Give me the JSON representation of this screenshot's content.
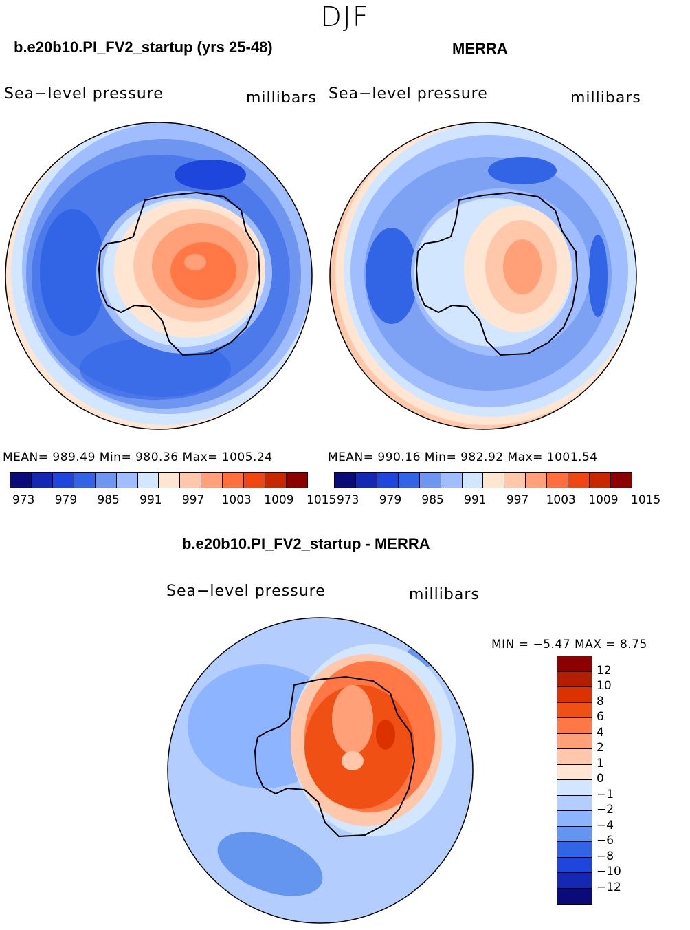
{
  "figure": {
    "season": "DJF",
    "units_label": "millibars",
    "field_label": "Sea−level pressure"
  },
  "panels": {
    "model": {
      "title": "b.e20b10.PI_FV2_startup (yrs 25-48)",
      "field": "Sea−level pressure",
      "units": "millibars",
      "stats": "MEAN= 989.49   Min= 980.36   Max= 1005.24",
      "mean": 989.49,
      "min": 980.36,
      "max": 1005.24
    },
    "obs": {
      "title": "MERRA",
      "field": "Sea−level pressure",
      "units": "millibars",
      "stats": "MEAN= 990.16   Min= 982.92   Max= 1001.54",
      "mean": 990.16,
      "min": 982.92,
      "max": 1001.54
    },
    "diff": {
      "title": "b.e20b10.PI_FV2_startup - MERRA",
      "field": "Sea−level pressure",
      "units": "millibars",
      "stats": "MIN =   −5.47 MAX =    8.75",
      "min": -5.47,
      "max": 8.75
    }
  },
  "colorbar_abs": {
    "colors": [
      "#0a0a78",
      "#1428b4",
      "#1e46dc",
      "#3264e6",
      "#6e96f0",
      "#a0beff",
      "#d2e6ff",
      "#ffe6d2",
      "#ffc8aa",
      "#ffa078",
      "#ff6e3c",
      "#f04614",
      "#c82800",
      "#8c0000"
    ],
    "tick_labels": [
      "973",
      "979",
      "985",
      "991",
      "997",
      "1003",
      "1009",
      "1015"
    ]
  },
  "colorbar_diff": {
    "colors": [
      "#8c0000",
      "#b41e00",
      "#dc3200",
      "#f05014",
      "#ff7846",
      "#ffa078",
      "#ffc8aa",
      "#ffe6d2",
      "#d2e6ff",
      "#b4cdff",
      "#8cb4ff",
      "#6496f0",
      "#3264e6",
      "#1e46dc",
      "#1428b4",
      "#0a0a78"
    ],
    "tick_labels": [
      "12",
      "10",
      "8",
      "6",
      "4",
      "2",
      "1",
      "0",
      "−1",
      "−2",
      "−4",
      "−6",
      "−8",
      "−10",
      "−12"
    ]
  }
}
